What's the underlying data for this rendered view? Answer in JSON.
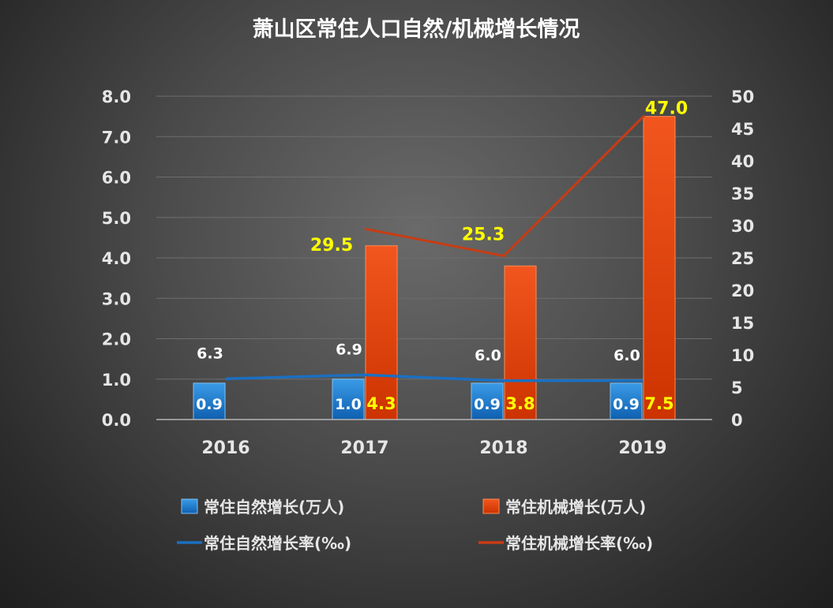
{
  "chart_data": {
    "type": "bar",
    "title": "萧山区常住人口自然/机械增长情况",
    "categories": [
      "2016",
      "2017",
      "2018",
      "2019"
    ],
    "left_axis": {
      "min": 0,
      "max": 8,
      "step": 1,
      "decimals": 1
    },
    "right_axis": {
      "min": 0,
      "max": 50,
      "step": 5,
      "decimals": 0
    },
    "grid": true,
    "legend_position": "bottom",
    "series": [
      {
        "name": "常住自然增长(万人)",
        "kind": "bar",
        "axis": "left",
        "color": "#1a73c9",
        "values": [
          0.9,
          1.0,
          0.9,
          0.9
        ],
        "labels": [
          "0.9",
          "1.0",
          "0.9",
          "0.9"
        ]
      },
      {
        "name": "常住机械增长(万人)",
        "kind": "bar",
        "axis": "left",
        "color": "#e03c0a",
        "values": [
          null,
          4.3,
          3.8,
          7.5
        ],
        "labels": [
          "",
          "4.3",
          "3.8",
          "7.5"
        ]
      },
      {
        "name": "常住自然增长率(‰)",
        "kind": "line",
        "axis": "right",
        "color": "#1b6fc0",
        "values": [
          6.3,
          6.9,
          6.0,
          6.0
        ],
        "labels": [
          "6.3",
          "6.9",
          "6.0",
          "6.0"
        ]
      },
      {
        "name": "常住机械增长率(‰)",
        "kind": "line",
        "axis": "right",
        "color": "#c83c14",
        "values": [
          null,
          29.5,
          25.3,
          47.0
        ],
        "labels": [
          "",
          "29.5",
          "25.3",
          "47.0"
        ]
      }
    ]
  }
}
